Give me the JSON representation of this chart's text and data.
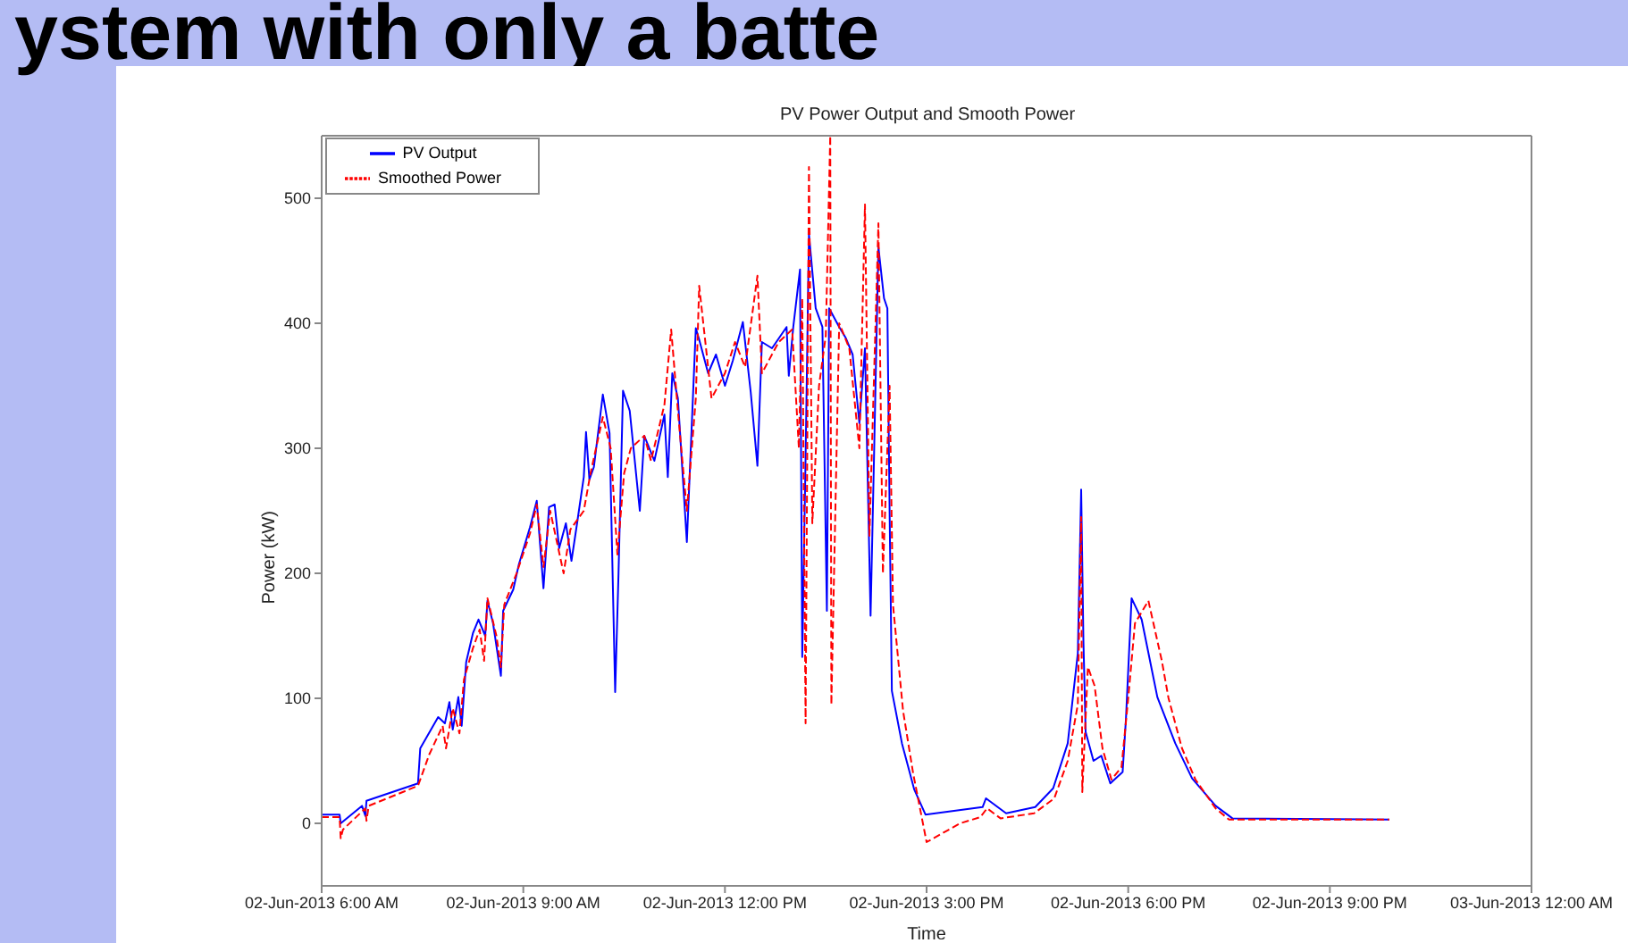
{
  "chart_data": {
    "type": "line",
    "title": "PV Power Output and Smooth Power",
    "xlabel": "Time",
    "ylabel": "Power (kW)",
    "annotations": [
      "ystem with only a batte"
    ],
    "xlim": [
      "2013-06-02T06:00",
      "2013-06-03T00:00"
    ],
    "xticks": [
      {
        "value": "2013-06-02T06:00",
        "label": "02-Jun-2013  6:00 AM"
      },
      {
        "value": "2013-06-02T09:00",
        "label": "02-Jun-2013  9:00 AM"
      },
      {
        "value": "2013-06-02T12:00",
        "label": "02-Jun-2013 12:00 PM"
      },
      {
        "value": "2013-06-02T15:00",
        "label": "02-Jun-2013  3:00 PM"
      },
      {
        "value": "2013-06-02T18:00",
        "label": "02-Jun-2013  6:00 PM"
      },
      {
        "value": "2013-06-02T21:00",
        "label": "02-Jun-2013  9:00 PM"
      },
      {
        "value": "2013-06-03T00:00",
        "label": "03-Jun-2013 12:00 AM"
      }
    ],
    "ylim": [
      -50,
      550
    ],
    "yticks": [
      0,
      100,
      200,
      300,
      400,
      500
    ],
    "grid": false,
    "legend": "top left",
    "marker": "none",
    "series": [
      {
        "name": "PV Output",
        "color": "#0000ff",
        "line_style": "solid",
        "x": [
          "2013-06-02T06:00",
          "2013-06-02T06:16",
          "2013-06-02T06:17",
          "2013-06-02T06:36",
          "2013-06-02T06:39",
          "2013-06-02T06:40",
          "2013-06-02T07:26",
          "2013-06-02T07:28",
          "2013-06-02T07:44",
          "2013-06-02T07:50",
          "2013-06-02T07:54",
          "2013-06-02T07:57",
          "2013-06-02T08:02",
          "2013-06-02T08:05",
          "2013-06-02T08:09",
          "2013-06-02T08:15",
          "2013-06-02T08:20",
          "2013-06-02T08:26",
          "2013-06-02T08:28",
          "2013-06-02T08:33",
          "2013-06-02T08:40",
          "2013-06-02T08:42",
          "2013-06-02T08:51",
          "2013-06-02T08:56",
          "2013-06-02T09:06",
          "2013-06-02T09:12",
          "2013-06-02T09:18",
          "2013-06-02T09:23",
          "2013-06-02T09:28",
          "2013-06-02T09:32",
          "2013-06-02T09:38",
          "2013-06-02T09:43",
          "2013-06-02T09:48",
          "2013-06-02T09:54",
          "2013-06-02T09:56",
          "2013-06-02T09:59",
          "2013-06-02T10:03",
          "2013-06-02T10:11",
          "2013-06-02T10:17",
          "2013-06-02T10:22",
          "2013-06-02T10:25",
          "2013-06-02T10:29",
          "2013-06-02T10:35",
          "2013-06-02T10:44",
          "2013-06-02T10:48",
          "2013-06-02T10:57",
          "2013-06-02T11:06",
          "2013-06-02T11:09",
          "2013-06-02T11:13",
          "2013-06-02T11:18",
          "2013-06-02T11:26",
          "2013-06-02T11:34",
          "2013-06-02T11:37",
          "2013-06-02T11:45",
          "2013-06-02T11:52",
          "2013-06-02T12:00",
          "2013-06-02T12:07",
          "2013-06-02T12:16",
          "2013-06-02T12:23",
          "2013-06-02T12:29",
          "2013-06-02T12:33",
          "2013-06-02T12:42",
          "2013-06-02T12:55",
          "2013-06-02T12:57",
          "2013-06-02T13:01",
          "2013-06-02T13:07",
          "2013-06-02T13:09",
          "2013-06-02T13:12",
          "2013-06-02T13:15",
          "2013-06-02T13:21",
          "2013-06-02T13:27",
          "2013-06-02T13:31",
          "2013-06-02T13:33",
          "2013-06-02T13:42",
          "2013-06-02T13:48",
          "2013-06-02T13:54",
          "2013-06-02T14:00",
          "2013-06-02T14:05",
          "2013-06-02T14:10",
          "2013-06-02T14:13",
          "2013-06-02T14:17",
          "2013-06-02T14:22",
          "2013-06-02T14:25",
          "2013-06-02T14:27",
          "2013-06-02T14:29",
          "2013-06-02T14:38",
          "2013-06-02T14:49",
          "2013-06-02T14:59",
          "2013-06-02T15:50",
          "2013-06-02T15:53",
          "2013-06-02T16:11",
          "2013-06-02T16:37",
          "2013-06-02T16:53",
          "2013-06-02T17:06",
          "2013-06-02T17:11",
          "2013-06-02T17:15",
          "2013-06-02T17:18",
          "2013-06-02T17:20",
          "2013-06-02T17:22",
          "2013-06-02T17:29",
          "2013-06-02T17:36",
          "2013-06-02T17:44",
          "2013-06-02T17:55",
          "2013-06-02T17:58",
          "2013-06-02T18:03",
          "2013-06-02T18:12",
          "2013-06-02T18:26",
          "2013-06-02T18:42",
          "2013-06-02T18:57",
          "2013-06-02T19:18",
          "2013-06-02T19:33",
          "2013-06-02T21:53"
        ],
        "values": [
          7,
          7,
          0,
          14,
          6,
          18,
          32,
          60,
          85,
          80,
          97,
          75,
          101,
          78,
          129,
          152,
          163,
          150,
          178,
          160,
          118,
          170,
          187,
          207,
          237,
          258,
          188,
          253,
          255,
          220,
          240,
          210,
          240,
          277,
          313,
          275,
          285,
          343,
          312,
          105,
          200,
          346,
          330,
          250,
          310,
          290,
          327,
          277,
          360,
          340,
          225,
          396,
          387,
          360,
          375,
          350,
          370,
          401,
          345,
          286,
          385,
          380,
          397,
          358,
          397,
          443,
          133,
          293,
          471,
          412,
          397,
          170,
          412,
          397,
          388,
          375,
          320,
          380,
          166,
          290,
          461,
          420,
          412,
          249,
          106,
          64,
          27,
          7,
          13,
          20,
          8,
          13,
          28,
          64,
          104,
          136,
          267,
          146,
          73,
          50,
          54,
          32,
          41,
          84,
          180,
          163,
          101,
          64,
          36,
          14,
          4,
          3
        ]
      },
      {
        "name": "Smoothed Power",
        "color": "#ff0000",
        "line_style": "dashed",
        "x": [
          "2013-06-02T06:00",
          "2013-06-02T06:16",
          "2013-06-02T06:17",
          "2013-06-02T06:19",
          "2013-06-02T06:39",
          "2013-06-02T06:40",
          "2013-06-02T06:42",
          "2013-06-02T07:26",
          "2013-06-02T07:36",
          "2013-06-02T07:48",
          "2013-06-02T07:51",
          "2013-06-02T07:57",
          "2013-06-02T08:03",
          "2013-06-02T08:07",
          "2013-06-02T08:15",
          "2013-06-02T08:21",
          "2013-06-02T08:25",
          "2013-06-02T08:28",
          "2013-06-02T08:36",
          "2013-06-02T08:40",
          "2013-06-02T08:43",
          "2013-06-02T08:54",
          "2013-06-02T09:06",
          "2013-06-02T09:12",
          "2013-06-02T09:18",
          "2013-06-02T09:24",
          "2013-06-02T09:36",
          "2013-06-02T09:42",
          "2013-06-02T09:54",
          "2013-06-02T10:00",
          "2013-06-02T10:11",
          "2013-06-02T10:18",
          "2013-06-02T10:24",
          "2013-06-02T10:30",
          "2013-06-02T10:36",
          "2013-06-02T10:48",
          "2013-06-02T10:54",
          "2013-06-02T11:06",
          "2013-06-02T11:12",
          "2013-06-02T11:18",
          "2013-06-02T11:26",
          "2013-06-02T11:34",
          "2013-06-02T11:37",
          "2013-06-02T11:48",
          "2013-06-02T12:00",
          "2013-06-02T12:09",
          "2013-06-02T12:18",
          "2013-06-02T12:29",
          "2013-06-02T12:33",
          "2013-06-02T12:48",
          "2013-06-02T13:00",
          "2013-06-02T13:06",
          "2013-06-02T13:09",
          "2013-06-02T13:12",
          "2013-06-02T13:15",
          "2013-06-02T13:18",
          "2013-06-02T13:24",
          "2013-06-02T13:30",
          "2013-06-02T13:34",
          "2013-06-02T13:35",
          "2013-06-02T13:42",
          "2013-06-02T13:51",
          "2013-06-02T14:00",
          "2013-06-02T14:05",
          "2013-06-02T14:09",
          "2013-06-02T14:17",
          "2013-06-02T14:21",
          "2013-06-02T14:27",
          "2013-06-02T14:30",
          "2013-06-02T14:39",
          "2013-06-02T14:48",
          "2013-06-02T15:00",
          "2013-06-02T15:30",
          "2013-06-02T15:48",
          "2013-06-02T15:54",
          "2013-06-02T16:06",
          "2013-06-02T16:36",
          "2013-06-02T16:54",
          "2013-06-02T17:06",
          "2013-06-02T17:15",
          "2013-06-02T17:18",
          "2013-06-02T17:19",
          "2013-06-02T17:24",
          "2013-06-02T17:30",
          "2013-06-02T17:37",
          "2013-06-02T17:45",
          "2013-06-02T17:54",
          "2013-06-02T18:00",
          "2013-06-02T18:06",
          "2013-06-02T18:18",
          "2013-06-02T18:30",
          "2013-06-02T18:36",
          "2013-06-02T18:48",
          "2013-06-02T19:00",
          "2013-06-02T19:18",
          "2013-06-02T19:30",
          "2013-06-02T21:53"
        ],
        "values": [
          5,
          5,
          -12,
          -5,
          12,
          2,
          14,
          30,
          55,
          78,
          60,
          92,
          72,
          115,
          140,
          155,
          130,
          180,
          150,
          125,
          175,
          200,
          232,
          255,
          205,
          250,
          200,
          235,
          250,
          280,
          325,
          300,
          215,
          280,
          300,
          310,
          290,
          335,
          395,
          330,
          250,
          340,
          430,
          340,
          360,
          385,
          365,
          438,
          360,
          385,
          395,
          300,
          420,
          80,
          525,
          240,
          350,
          390,
          550,
          95,
          400,
          380,
          300,
          495,
          230,
          480,
          200,
          350,
          175,
          90,
          40,
          -15,
          0,
          5,
          12,
          4,
          8,
          20,
          50,
          95,
          245,
          25,
          125,
          110,
          60,
          35,
          45,
          100,
          160,
          178,
          130,
          100,
          60,
          35,
          12,
          3,
          3
        ]
      }
    ]
  }
}
